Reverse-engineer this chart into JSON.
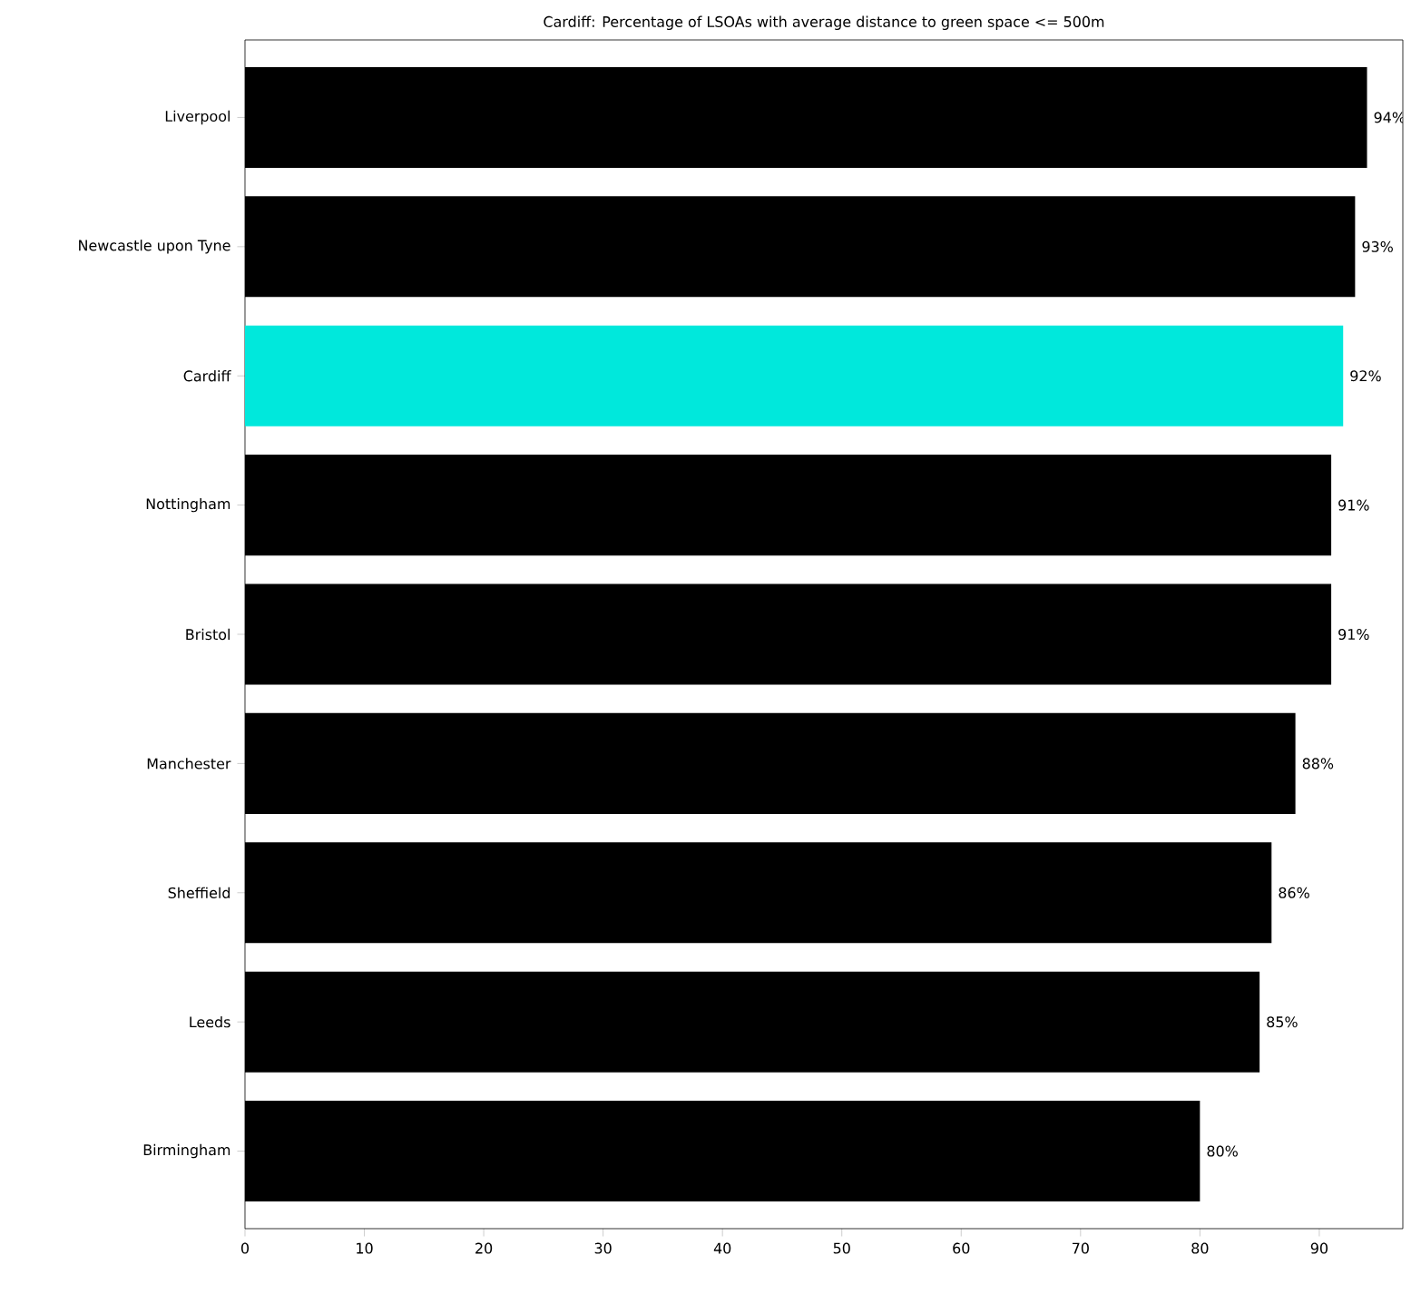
{
  "chart_data": {
    "type": "bar",
    "orientation": "horizontal",
    "title": "Cardiff: Percentage of LSOAs with average distance to green space <= 500m",
    "categories": [
      "Liverpool",
      "Newcastle upon Tyne",
      "Cardiff",
      "Nottingham",
      "Bristol",
      "Manchester",
      "Sheffield",
      "Leeds",
      "Birmingham"
    ],
    "values": [
      94,
      93,
      92,
      91,
      91,
      88,
      86,
      85,
      80
    ],
    "colors": [
      "#000000",
      "#000000",
      "#00e8dc",
      "#000000",
      "#000000",
      "#000000",
      "#000000",
      "#000000",
      "#000000"
    ],
    "value_labels": [
      "94%",
      "93%",
      "92%",
      "91%",
      "91%",
      "88%",
      "86%",
      "85%",
      "80%"
    ],
    "xlim": [
      0,
      97
    ],
    "xticks": [
      0,
      10,
      20,
      30,
      40,
      50,
      60,
      70,
      80,
      90
    ],
    "grid": false
  }
}
